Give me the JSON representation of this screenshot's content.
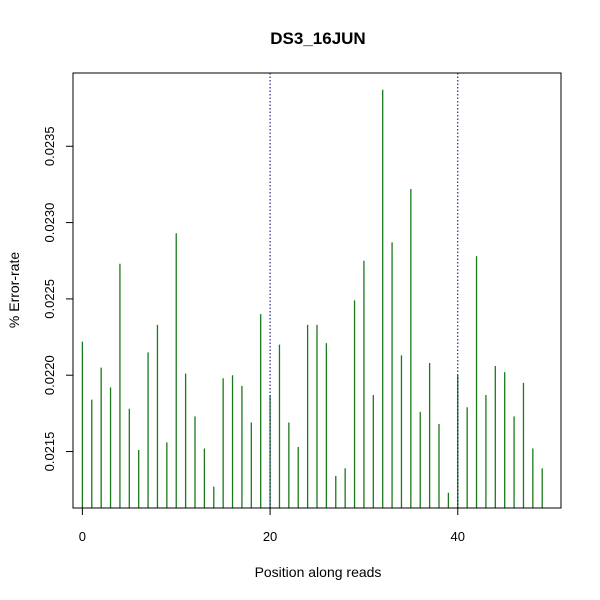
{
  "chart_data": {
    "type": "bar",
    "title": "DS3_16JUN",
    "xlabel": "Position along reads",
    "ylabel": "% Error-rate",
    "xlim": [
      -1,
      51
    ],
    "ylim": [
      0.02113,
      0.02398
    ],
    "x_ticks": [
      0,
      20,
      40
    ],
    "x_tick_labels": [
      "0",
      "20",
      "40"
    ],
    "y_ticks": [
      0.0215,
      0.022,
      0.0225,
      0.023,
      0.0235
    ],
    "y_tick_labels": [
      "0.0215",
      "0.0220",
      "0.0225",
      "0.0230",
      "0.0235"
    ],
    "vlines": [
      20,
      40
    ],
    "grid": false,
    "colors": {
      "bars": "#1a7a1a",
      "vlines": "#00007a",
      "axes": "#000000"
    },
    "x": [
      0,
      1,
      2,
      3,
      4,
      5,
      6,
      7,
      8,
      9,
      10,
      11,
      12,
      13,
      14,
      15,
      16,
      17,
      18,
      19,
      20,
      21,
      22,
      23,
      24,
      25,
      26,
      27,
      28,
      29,
      30,
      31,
      32,
      33,
      34,
      35,
      36,
      37,
      38,
      39,
      40,
      41,
      42,
      43,
      44,
      45,
      46,
      47,
      48,
      49
    ],
    "values": [
      0.02222,
      0.02184,
      0.02205,
      0.02192,
      0.02273,
      0.02178,
      0.02151,
      0.02215,
      0.02233,
      0.02156,
      0.02293,
      0.02201,
      0.02173,
      0.02152,
      0.02127,
      0.02198,
      0.022,
      0.02193,
      0.02169,
      0.0224,
      0.02187,
      0.0222,
      0.02169,
      0.02153,
      0.02233,
      0.02233,
      0.02221,
      0.02134,
      0.02139,
      0.02249,
      0.02275,
      0.02187,
      0.02387,
      0.02287,
      0.02213,
      0.02322,
      0.02176,
      0.02208,
      0.02168,
      0.02123,
      0.022,
      0.02179,
      0.02278,
      0.02187,
      0.02206,
      0.02202,
      0.02173,
      0.02195,
      0.02152,
      0.02139
    ]
  }
}
